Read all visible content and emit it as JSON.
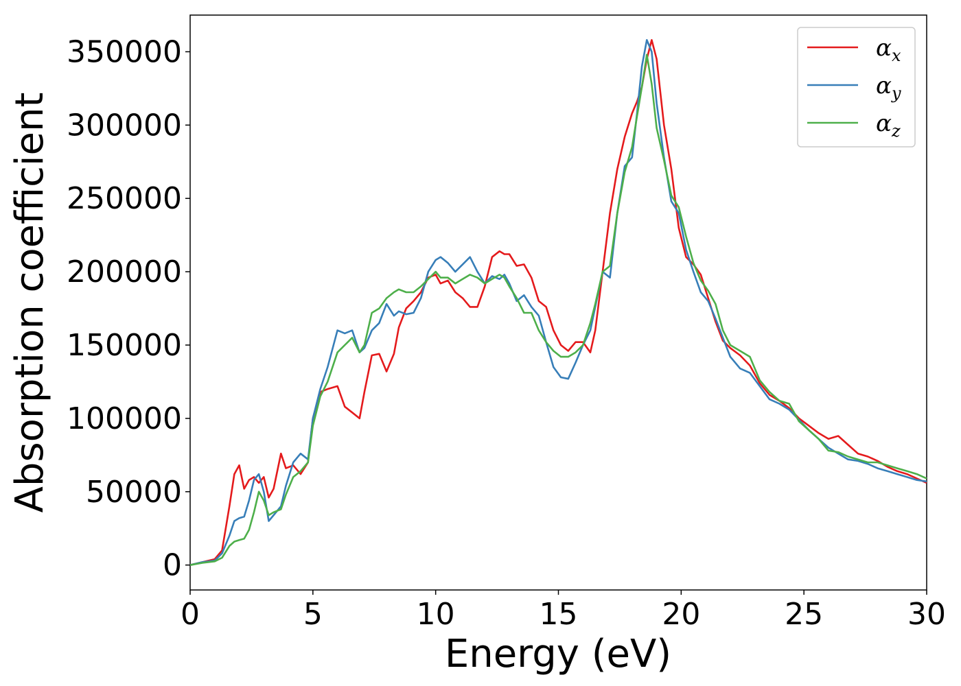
{
  "chart_data": {
    "type": "line",
    "xlabel": "Energy (eV)",
    "ylabel": "Absorption coefficient",
    "xlim": [
      0,
      30
    ],
    "ylim": [
      -17000,
      375000
    ],
    "xticks": [
      0,
      5,
      10,
      15,
      20,
      25,
      30
    ],
    "yticks": [
      0,
      50000,
      100000,
      150000,
      200000,
      250000,
      300000,
      350000
    ],
    "grid": false,
    "legend_position": "top-right",
    "series": [
      {
        "name": "αx",
        "legend_symbol": "α",
        "legend_sub": "x",
        "color": "#e41a1c",
        "x": [
          0,
          0.5,
          1.0,
          1.3,
          1.6,
          1.8,
          2.0,
          2.2,
          2.4,
          2.6,
          2.8,
          3.0,
          3.2,
          3.4,
          3.7,
          3.9,
          4.2,
          4.5,
          4.8,
          5.0,
          5.3,
          5.6,
          6.0,
          6.3,
          6.6,
          6.9,
          7.1,
          7.4,
          7.7,
          8.0,
          8.3,
          8.5,
          8.8,
          9.1,
          9.4,
          9.7,
          10.0,
          10.2,
          10.5,
          10.8,
          11.1,
          11.4,
          11.7,
          12.0,
          12.3,
          12.6,
          12.8,
          13.0,
          13.3,
          13.6,
          13.9,
          14.2,
          14.5,
          14.8,
          15.1,
          15.4,
          15.7,
          16.0,
          16.3,
          16.5,
          16.8,
          17.1,
          17.4,
          17.7,
          18.0,
          18.2,
          18.4,
          18.6,
          18.8,
          19.0,
          19.3,
          19.6,
          19.9,
          20.2,
          20.5,
          20.8,
          21.1,
          21.4,
          21.7,
          22.0,
          22.4,
          22.8,
          23.2,
          23.6,
          24.0,
          24.4,
          24.8,
          25.2,
          25.6,
          26.0,
          26.4,
          26.8,
          27.2,
          27.6,
          28.0,
          28.4,
          28.8,
          29.2,
          29.6,
          30.0
        ],
        "y": [
          0,
          2000,
          4000,
          10000,
          40000,
          62000,
          68000,
          52000,
          58000,
          60000,
          56000,
          60000,
          46000,
          52000,
          76000,
          66000,
          68000,
          62000,
          70000,
          100000,
          118000,
          120000,
          122000,
          108000,
          104000,
          100000,
          118000,
          143000,
          144000,
          132000,
          144000,
          162000,
          175000,
          180000,
          186000,
          196000,
          198000,
          192000,
          194000,
          186000,
          182000,
          176000,
          176000,
          190000,
          210000,
          214000,
          212000,
          212000,
          204000,
          205000,
          196000,
          180000,
          176000,
          160000,
          150000,
          146000,
          152000,
          152000,
          145000,
          160000,
          200000,
          240000,
          270000,
          292000,
          308000,
          316000,
          326000,
          345000,
          358000,
          345000,
          300000,
          270000,
          230000,
          210000,
          205000,
          198000,
          182000,
          166000,
          153000,
          148000,
          143000,
          136000,
          124000,
          116000,
          112000,
          107000,
          100000,
          95000,
          90000,
          86000,
          88000,
          82000,
          76000,
          74000,
          71000,
          67000,
          64000,
          62000,
          59000,
          56000
        ]
      },
      {
        "name": "αy",
        "legend_symbol": "α",
        "legend_sub": "y",
        "color": "#377eb8",
        "x": [
          0,
          0.5,
          1.0,
          1.3,
          1.6,
          1.8,
          2.0,
          2.2,
          2.4,
          2.6,
          2.8,
          3.0,
          3.2,
          3.4,
          3.7,
          3.9,
          4.2,
          4.5,
          4.8,
          5.0,
          5.3,
          5.6,
          6.0,
          6.3,
          6.6,
          6.9,
          7.1,
          7.4,
          7.7,
          8.0,
          8.3,
          8.5,
          8.8,
          9.1,
          9.4,
          9.7,
          10.0,
          10.2,
          10.5,
          10.8,
          11.1,
          11.4,
          11.7,
          12.0,
          12.3,
          12.6,
          12.8,
          13.0,
          13.3,
          13.6,
          13.9,
          14.2,
          14.5,
          14.8,
          15.1,
          15.4,
          15.7,
          16.0,
          16.3,
          16.5,
          16.8,
          17.1,
          17.4,
          17.7,
          18.0,
          18.2,
          18.4,
          18.6,
          18.8,
          19.0,
          19.3,
          19.6,
          19.9,
          20.2,
          20.5,
          20.8,
          21.1,
          21.4,
          21.7,
          22.0,
          22.4,
          22.8,
          23.2,
          23.6,
          24.0,
          24.4,
          24.8,
          25.2,
          25.6,
          26.0,
          26.4,
          26.8,
          27.2,
          27.6,
          28.0,
          28.4,
          28.8,
          29.2,
          29.6,
          30.0
        ],
        "y": [
          0,
          2000,
          3000,
          8000,
          20000,
          30000,
          32000,
          33000,
          44000,
          58000,
          62000,
          50000,
          30000,
          34000,
          40000,
          54000,
          70000,
          76000,
          72000,
          100000,
          120000,
          135000,
          160000,
          158000,
          160000,
          145000,
          148000,
          160000,
          165000,
          178000,
          170000,
          173000,
          171000,
          172000,
          182000,
          200000,
          208000,
          210000,
          206000,
          200000,
          205000,
          210000,
          200000,
          192000,
          197000,
          195000,
          198000,
          192000,
          180000,
          184000,
          176000,
          170000,
          152000,
          135000,
          128000,
          127000,
          138000,
          150000,
          160000,
          176000,
          200000,
          196000,
          240000,
          272000,
          278000,
          308000,
          340000,
          358000,
          350000,
          315000,
          278000,
          248000,
          240000,
          215000,
          200000,
          186000,
          180000,
          168000,
          155000,
          142000,
          134000,
          131000,
          122000,
          113000,
          110000,
          106000,
          99000,
          92000,
          86000,
          80000,
          76000,
          72000,
          71000,
          69000,
          66000,
          64000,
          62000,
          60000,
          58000,
          57000
        ]
      },
      {
        "name": "αz",
        "legend_symbol": "α",
        "legend_sub": "z",
        "color": "#4daf4a",
        "x": [
          0,
          0.5,
          1.0,
          1.3,
          1.6,
          1.8,
          2.0,
          2.2,
          2.4,
          2.6,
          2.8,
          3.0,
          3.2,
          3.4,
          3.7,
          3.9,
          4.2,
          4.5,
          4.8,
          5.0,
          5.3,
          5.6,
          6.0,
          6.3,
          6.6,
          6.9,
          7.1,
          7.4,
          7.7,
          8.0,
          8.3,
          8.5,
          8.8,
          9.1,
          9.4,
          9.7,
          10.0,
          10.2,
          10.5,
          10.8,
          11.1,
          11.4,
          11.7,
          12.0,
          12.3,
          12.6,
          12.8,
          13.0,
          13.3,
          13.6,
          13.9,
          14.2,
          14.5,
          14.8,
          15.1,
          15.4,
          15.7,
          16.0,
          16.3,
          16.5,
          16.8,
          17.1,
          17.4,
          17.7,
          18.0,
          18.2,
          18.4,
          18.6,
          18.8,
          19.0,
          19.3,
          19.6,
          19.9,
          20.2,
          20.5,
          20.8,
          21.1,
          21.4,
          21.7,
          22.0,
          22.4,
          22.8,
          23.2,
          23.6,
          24.0,
          24.4,
          24.8,
          25.2,
          25.6,
          26.0,
          26.4,
          26.8,
          27.2,
          27.6,
          28.0,
          28.4,
          28.8,
          29.2,
          29.6,
          30.0
        ],
        "y": [
          0,
          1500,
          2500,
          5000,
          13000,
          16000,
          17000,
          18000,
          24000,
          36000,
          50000,
          44000,
          34000,
          36000,
          38000,
          48000,
          60000,
          64000,
          70000,
          95000,
          115000,
          125000,
          145000,
          150000,
          155000,
          145000,
          150000,
          172000,
          175000,
          182000,
          186000,
          188000,
          186000,
          186000,
          190000,
          195000,
          200000,
          196000,
          196000,
          192000,
          195000,
          198000,
          196000,
          192000,
          195000,
          198000,
          196000,
          190000,
          182000,
          172000,
          172000,
          160000,
          152000,
          146000,
          142000,
          142000,
          145000,
          150000,
          165000,
          178000,
          200000,
          204000,
          240000,
          268000,
          285000,
          306000,
          326000,
          348000,
          328000,
          298000,
          276000,
          252000,
          244000,
          224000,
          206000,
          194000,
          187000,
          178000,
          160000,
          150000,
          146000,
          142000,
          126000,
          118000,
          112000,
          110000,
          98000,
          92000,
          86000,
          78000,
          77000,
          74000,
          72000,
          70000,
          70000,
          68000,
          66000,
          64000,
          62000,
          59000
        ]
      }
    ]
  }
}
